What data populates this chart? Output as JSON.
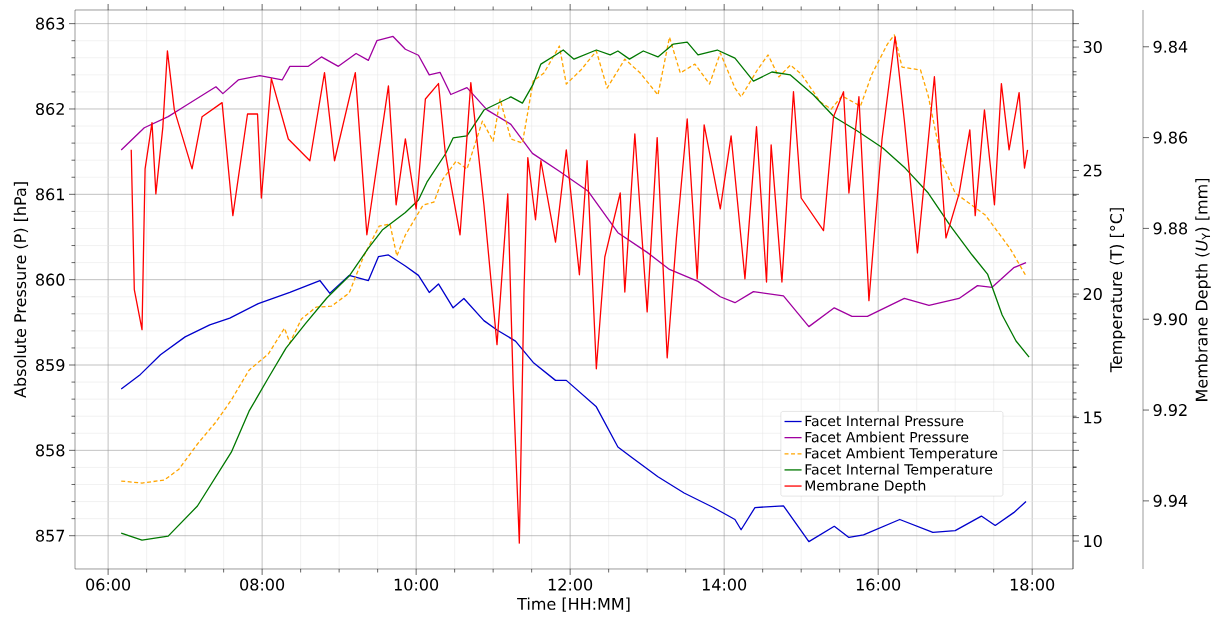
{
  "chart_data": {
    "type": "line",
    "xlabel": "Time [HH:MM]",
    "ylabel": "Absolute Pressure (P) [hPa]",
    "y2label": "Temperature (T) [°C]",
    "y3label": "Membrane Depth (*U*$_{Y}$) [mm]",
    "xlim": [
      5.57,
      18.53
    ],
    "xticks": [
      {
        "value": 6,
        "label": "06:00"
      },
      {
        "value": 8,
        "label": "08:00"
      },
      {
        "value": 10,
        "label": "10:00"
      },
      {
        "value": 12,
        "label": "12:00"
      },
      {
        "value": 14,
        "label": "14:00"
      },
      {
        "value": 16,
        "label": "16:00"
      },
      {
        "value": 18,
        "label": "18:00"
      }
    ],
    "ylim": [
      856.61,
      863.16
    ],
    "yticks": [
      857,
      858,
      859,
      860,
      861,
      862,
      863
    ],
    "y2lim": [
      8.87,
      31.5
    ],
    "y2ticks": [
      10,
      15,
      20,
      25,
      30
    ],
    "y3lim": [
      9.955,
      9.8319
    ],
    "y3ticks": [
      {
        "value": 9.84,
        "label": "9.84"
      },
      {
        "value": 9.86,
        "label": "9.86"
      },
      {
        "value": 9.88,
        "label": "9.88"
      },
      {
        "value": 9.9,
        "label": "9.90"
      },
      {
        "value": 9.92,
        "label": "9.92"
      },
      {
        "value": 9.94,
        "label": "9.94"
      }
    ],
    "grid": true,
    "legend": "bottom right",
    "line_style": "solid",
    "series": [
      {
        "name": "Facet Internal Pressure",
        "color": "#0000cc",
        "axis": "y",
        "x": [
          6.17,
          6.42,
          6.68,
          7.0,
          7.32,
          7.58,
          7.95,
          8.36,
          8.75,
          8.88,
          9.13,
          9.38,
          9.51,
          9.64,
          9.86,
          10.03,
          10.17,
          10.29,
          10.48,
          10.62,
          10.88,
          11.05,
          11.29,
          11.52,
          11.81,
          11.95,
          12.34,
          12.62,
          12.81,
          13.14,
          13.48,
          13.86,
          14.14,
          14.22,
          14.4,
          14.77,
          15.1,
          15.43,
          15.62,
          15.81,
          16.28,
          16.71,
          17.0,
          17.34,
          17.52,
          17.76,
          17.92
        ],
        "values": [
          858.72,
          858.89,
          859.12,
          859.33,
          859.47,
          859.55,
          859.72,
          859.85,
          859.99,
          859.84,
          860.05,
          859.99,
          860.27,
          860.29,
          860.16,
          860.05,
          859.85,
          859.95,
          859.67,
          859.78,
          859.52,
          859.41,
          859.28,
          859.03,
          858.82,
          858.82,
          858.51,
          858.04,
          857.91,
          857.69,
          857.5,
          857.33,
          857.19,
          857.07,
          857.33,
          857.35,
          856.93,
          857.11,
          856.98,
          857.01,
          857.19,
          857.04,
          857.06,
          857.23,
          857.12,
          857.27,
          857.4
        ]
      },
      {
        "name": "Facet Ambient Pressure",
        "color": "#a000a0",
        "axis": "y",
        "x": [
          6.17,
          6.47,
          6.78,
          7.01,
          7.4,
          7.49,
          7.69,
          7.97,
          8.26,
          8.36,
          8.6,
          8.77,
          8.99,
          9.22,
          9.38,
          9.49,
          9.7,
          9.86,
          10.03,
          10.17,
          10.31,
          10.45,
          10.66,
          10.92,
          11.23,
          11.51,
          11.86,
          12.23,
          12.62,
          13.0,
          13.29,
          13.66,
          13.95,
          14.14,
          14.38,
          14.77,
          15.1,
          15.43,
          15.66,
          15.86,
          16.34,
          16.66,
          17.05,
          17.29,
          17.48,
          17.76,
          17.92
        ],
        "values": [
          861.52,
          861.78,
          861.91,
          862.04,
          862.26,
          862.18,
          862.34,
          862.39,
          862.34,
          862.5,
          862.5,
          862.61,
          862.5,
          862.65,
          862.57,
          862.8,
          862.85,
          862.7,
          862.63,
          862.4,
          862.43,
          862.17,
          862.25,
          861.99,
          861.82,
          861.48,
          861.27,
          861.04,
          860.55,
          860.32,
          860.12,
          859.98,
          859.8,
          859.73,
          859.86,
          859.81,
          859.45,
          859.67,
          859.57,
          859.57,
          859.78,
          859.7,
          859.78,
          859.93,
          859.91,
          860.14,
          860.2
        ]
      },
      {
        "name": "Facet Ambient Temperature",
        "color": "#ffa500",
        "axis": "y2",
        "line_style": "dashed",
        "x": [
          6.17,
          6.44,
          6.73,
          6.92,
          7.16,
          7.4,
          7.6,
          7.83,
          8.08,
          8.29,
          8.36,
          8.51,
          8.7,
          8.9,
          9.13,
          9.32,
          9.52,
          9.66,
          9.75,
          9.86,
          10.09,
          10.23,
          10.34,
          10.52,
          10.66,
          10.86,
          11.0,
          11.09,
          11.23,
          11.38,
          11.52,
          11.66,
          11.86,
          11.95,
          12.14,
          12.34,
          12.48,
          12.71,
          12.91,
          13.14,
          13.29,
          13.43,
          13.62,
          13.81,
          13.95,
          14.14,
          14.22,
          14.43,
          14.57,
          14.71,
          14.86,
          15.0,
          15.25,
          15.39,
          15.53,
          15.77,
          15.92,
          16.12,
          16.21,
          16.31,
          16.55,
          16.65,
          16.83,
          17.0,
          17.39,
          17.71,
          17.92
        ],
        "values": [
          12.43,
          12.35,
          12.47,
          12.91,
          13.93,
          14.82,
          15.71,
          16.92,
          17.57,
          18.62,
          18.02,
          18.99,
          19.47,
          19.51,
          20.04,
          21.54,
          22.75,
          22.83,
          21.54,
          22.39,
          23.6,
          23.72,
          24.62,
          25.38,
          25.06,
          27.0,
          26.19,
          27.89,
          26.28,
          26.11,
          28.62,
          28.95,
          30.04,
          28.5,
          29.07,
          29.84,
          28.34,
          29.51,
          28.95,
          28.06,
          30.4,
          28.95,
          29.31,
          28.5,
          29.76,
          28.34,
          27.98,
          29.07,
          29.68,
          28.79,
          29.27,
          28.91,
          27.77,
          27.49,
          28.02,
          27.61,
          28.91,
          30.12,
          30.49,
          29.19,
          29.07,
          28.02,
          25.3,
          24.09,
          23.2,
          21.86,
          20.73
        ]
      },
      {
        "name": "Facet Internal Temperature",
        "color": "#007800",
        "axis": "y2",
        "x": [
          6.17,
          6.44,
          6.78,
          7.16,
          7.6,
          7.83,
          8.08,
          8.31,
          8.56,
          8.84,
          9.13,
          9.38,
          9.56,
          9.86,
          10.03,
          10.14,
          10.38,
          10.48,
          10.66,
          10.88,
          11.23,
          11.38,
          11.52,
          11.62,
          11.81,
          11.91,
          12.05,
          12.34,
          12.52,
          12.62,
          12.77,
          12.95,
          13.14,
          13.34,
          13.52,
          13.66,
          13.91,
          14.14,
          14.38,
          14.62,
          14.86,
          15.16,
          15.43,
          15.73,
          16.06,
          16.35,
          16.65,
          16.94,
          17.22,
          17.42,
          17.61,
          17.79,
          17.96
        ],
        "values": [
          10.32,
          10.04,
          10.2,
          11.42,
          13.6,
          15.26,
          16.6,
          17.81,
          18.79,
          19.84,
          20.73,
          21.86,
          22.59,
          23.3,
          23.81,
          24.53,
          25.67,
          26.32,
          26.4,
          27.45,
          27.98,
          27.73,
          28.5,
          29.31,
          29.68,
          29.88,
          29.51,
          29.88,
          29.68,
          29.84,
          29.51,
          29.84,
          29.6,
          30.12,
          30.2,
          29.68,
          29.88,
          29.55,
          28.62,
          28.99,
          28.87,
          28.06,
          27.17,
          26.6,
          25.91,
          25.1,
          24.09,
          22.75,
          21.58,
          20.81,
          19.15,
          18.1,
          17.45
        ]
      },
      {
        "name": "Membrane Depth",
        "color": "#ff0000",
        "axis": "y3",
        "x": [
          6.3,
          6.34,
          6.44,
          6.48,
          6.57,
          6.62,
          6.71,
          6.77,
          6.86,
          7.09,
          7.22,
          7.48,
          7.62,
          7.81,
          7.94,
          7.99,
          8.12,
          8.34,
          8.62,
          8.81,
          8.94,
          9.21,
          9.36,
          9.64,
          9.74,
          9.86,
          10.0,
          10.12,
          10.29,
          10.38,
          10.57,
          10.71,
          10.88,
          11.05,
          11.19,
          11.26,
          11.34,
          11.4,
          11.45,
          11.55,
          11.62,
          11.81,
          11.95,
          12.12,
          12.22,
          12.34,
          12.45,
          12.65,
          12.71,
          12.84,
          13.0,
          13.13,
          13.26,
          13.38,
          13.52,
          13.65,
          13.74,
          13.95,
          14.09,
          14.27,
          14.42,
          14.55,
          14.61,
          14.75,
          14.9,
          15.0,
          15.29,
          15.42,
          15.55,
          15.62,
          15.75,
          15.88,
          16.05,
          16.22,
          16.34,
          16.51,
          16.73,
          16.88,
          17.05,
          17.19,
          17.26,
          17.38,
          17.51,
          17.6,
          17.7,
          17.83,
          17.9,
          17.94
        ],
        "values": [
          9.8627,
          9.8935,
          9.9023,
          9.8669,
          9.8567,
          9.8724,
          9.8578,
          9.8409,
          9.8539,
          9.8669,
          9.8554,
          9.8523,
          9.8772,
          9.8548,
          9.8548,
          9.8733,
          9.847,
          9.8603,
          9.8651,
          9.8457,
          9.8651,
          9.8457,
          9.8814,
          9.8486,
          9.8748,
          9.8603,
          9.8757,
          9.8515,
          9.8481,
          9.8636,
          9.8814,
          9.8479,
          9.8748,
          9.9056,
          9.8724,
          9.9144,
          9.9493,
          9.8942,
          9.8644,
          9.8781,
          9.8651,
          9.883,
          9.8627,
          9.8902,
          9.8651,
          9.9109,
          9.8863,
          9.8722,
          9.894,
          9.8592,
          9.8984,
          9.86,
          9.9085,
          9.8821,
          9.8559,
          9.8911,
          9.8572,
          9.8757,
          9.8596,
          9.8911,
          9.8576,
          9.8918,
          9.8616,
          9.8918,
          9.8499,
          9.8733,
          9.8805,
          9.8554,
          9.8499,
          9.8722,
          9.851,
          9.8959,
          9.8603,
          9.8378,
          9.8563,
          9.8854,
          9.8466,
          9.8821,
          9.8724,
          9.8583,
          9.8772,
          9.8539,
          9.8748,
          9.8481,
          9.8627,
          9.8501,
          9.8667,
          9.8627
        ]
      }
    ]
  }
}
